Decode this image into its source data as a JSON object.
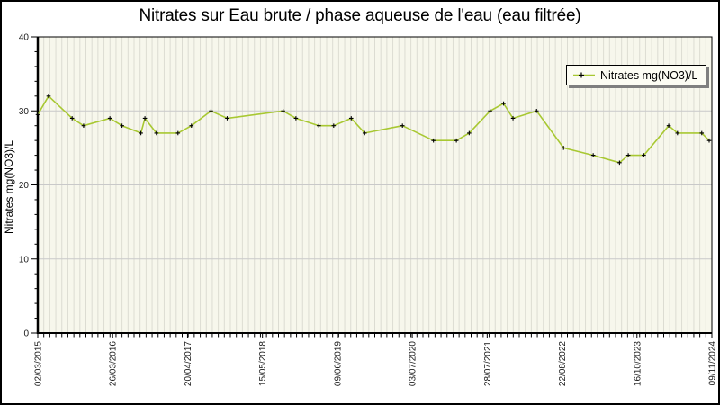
{
  "chart_data": {
    "type": "line",
    "title": "Nitrates sur Eau brute / phase aqueuse de l'eau (eau filtrée)",
    "ylabel": "Nitrates mg(NO3)/L",
    "legend": {
      "label": "Nitrates mg(NO3)/L",
      "position": "top-right"
    },
    "ylim": [
      0,
      40
    ],
    "y_major_ticks": [
      0,
      10,
      20,
      30,
      40
    ],
    "y_minor_step": 2,
    "x_tick_labels": [
      "02/03/2015",
      "26/03/2016",
      "20/04/2017",
      "15/05/2018",
      "09/06/2019",
      "03/07/2020",
      "28/07/2021",
      "22/08/2022",
      "16/10/2023",
      "09/11/2024"
    ],
    "x_minor_gridlines": "monthly vertical stripes",
    "x_minor_count": 112,
    "grid": "on",
    "colors": {
      "plot_bg": "#f7f7ec",
      "stripe": "#dcdcd2",
      "hgrid": "#c9c9c9",
      "axis": "#000000",
      "tick_text": "#1a1a1a"
    },
    "series": [
      {
        "name": "Nitrates mg(NO3)/L",
        "color": "#a8c832",
        "marker": "plus",
        "marker_color": "#000000",
        "points": [
          [
            0.0,
            29.5
          ],
          [
            0.016,
            32
          ],
          [
            0.051,
            29
          ],
          [
            0.068,
            28
          ],
          [
            0.107,
            29
          ],
          [
            0.125,
            28
          ],
          [
            0.153,
            27
          ],
          [
            0.159,
            29
          ],
          [
            0.176,
            27
          ],
          [
            0.208,
            27
          ],
          [
            0.228,
            28
          ],
          [
            0.257,
            30
          ],
          [
            0.281,
            29
          ],
          [
            0.364,
            30
          ],
          [
            0.383,
            29
          ],
          [
            0.417,
            28
          ],
          [
            0.439,
            28
          ],
          [
            0.465,
            29
          ],
          [
            0.485,
            27
          ],
          [
            0.541,
            28
          ],
          [
            0.587,
            26
          ],
          [
            0.621,
            26
          ],
          [
            0.64,
            27
          ],
          [
            0.671,
            30
          ],
          [
            0.691,
            31
          ],
          [
            0.705,
            29
          ],
          [
            0.74,
            30
          ],
          [
            0.78,
            25
          ],
          [
            0.824,
            24
          ],
          [
            0.863,
            23
          ],
          [
            0.876,
            24
          ],
          [
            0.899,
            24
          ],
          [
            0.936,
            28
          ],
          [
            0.949,
            27
          ],
          [
            0.985,
            27
          ],
          [
            0.996,
            26
          ]
        ]
      }
    ]
  }
}
